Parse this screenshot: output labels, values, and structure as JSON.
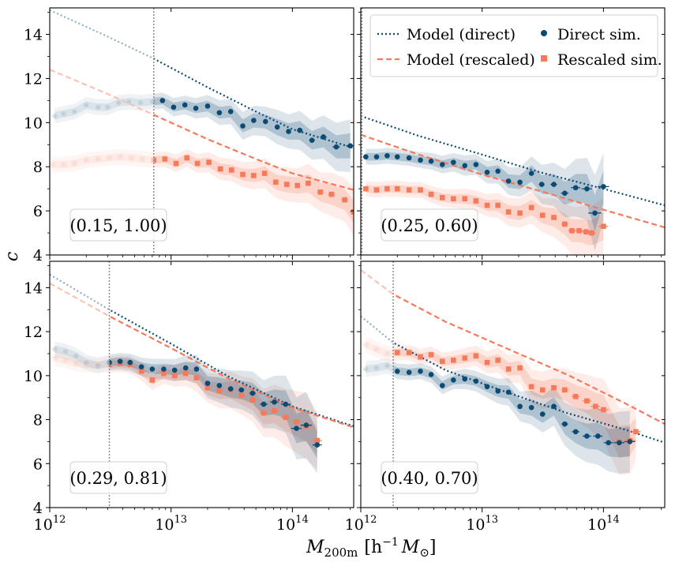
{
  "colors": {
    "direct": "#0b4a74",
    "rescaled": "#f47a5a",
    "vline": "#8c8c8c"
  },
  "chart_data": {
    "type": "scatter",
    "xlabel_main": "M",
    "xlabel_sub": "200m",
    "xlabel_units_open": "[h",
    "xlabel_units_exp": "−1",
    "xlabel_units_M": "M",
    "xlabel_units_sun": "⊙",
    "xlabel_units_close": "]",
    "ylabel": "c",
    "xscale": "log",
    "xlim": [
      1000000000000.0,
      320000000000000.0
    ],
    "ylim": [
      4,
      15.2
    ],
    "yticks": [
      "4",
      "6",
      "8",
      "10",
      "12",
      "14"
    ],
    "ytick_values": [
      4,
      6,
      8,
      10,
      12,
      14
    ],
    "xtick_base": "10",
    "xtick_exps": [
      "12",
      "13",
      "14"
    ],
    "legend": {
      "model_direct": "Model (direct)",
      "model_rescaled": "Model (rescaled)",
      "sim_direct": "Direct sim.",
      "sim_rescaled": "Rescaled sim."
    },
    "panels": [
      {
        "label": "(0.15, 1.00)",
        "vline": 7200000000000.0,
        "model_direct": {
          "x": [
            1000000000000.0,
            3000000000000.0,
            7200000000000.0,
            20000000000000.0,
            50000000000000.0,
            100000000000000.0,
            320000000000000.0
          ],
          "y": [
            15.1,
            13.9,
            12.9,
            11.6,
            10.5,
            9.7,
            8.85
          ]
        },
        "model_rescaled": {
          "x": [
            1000000000000.0,
            3000000000000.0,
            7200000000000.0,
            20000000000000.0,
            50000000000000.0,
            100000000000000.0,
            320000000000000.0
          ],
          "y": [
            12.4,
            11.3,
            10.35,
            9.25,
            8.35,
            7.7,
            6.95
          ]
        },
        "sim_direct": {
          "x": [
            1100000000000.0,
            1300000000000.0,
            1600000000000.0,
            2000000000000.0,
            2500000000000.0,
            3000000000000.0,
            3700000000000.0,
            4500000000000.0,
            5600000000000.0,
            7000000000000.0,
            8500000000000.0,
            10500000000000.0,
            13000000000000.0,
            16000000000000.0,
            20000000000000.0,
            25000000000000.0,
            31000000000000.0,
            39000000000000.0,
            48000000000000.0,
            60000000000000.0,
            75000000000000.0,
            93000000000000.0,
            115000000000000.0,
            145000000000000.0,
            180000000000000.0,
            230000000000000.0,
            300000000000000.0
          ],
          "y": [
            10.3,
            10.4,
            10.5,
            10.8,
            10.7,
            10.7,
            10.9,
            10.95,
            10.9,
            10.95,
            11.0,
            10.7,
            10.8,
            10.65,
            10.75,
            10.45,
            10.5,
            9.85,
            10.1,
            10.05,
            9.8,
            9.6,
            9.65,
            9.2,
            9.35,
            8.9,
            8.95
          ],
          "err": [
            0.05,
            0.05,
            0.05,
            0.05,
            0.05,
            0.05,
            0.05,
            0.05,
            0.05,
            0.05,
            0.05,
            0.08,
            0.08,
            0.1,
            0.12,
            0.15,
            0.15,
            0.18,
            0.2,
            0.2,
            0.25,
            0.25,
            0.3,
            0.3,
            0.35,
            0.4,
            0.45
          ]
        },
        "sim_rescaled": {
          "x": [
            1050000000000.0,
            1300000000000.0,
            1600000000000.0,
            2000000000000.0,
            2500000000000.0,
            3100000000000.0,
            3800000000000.0,
            4700000000000.0,
            5800000000000.0,
            7200000000000.0,
            8900000000000.0,
            11000000000000.0,
            13500000000000.0,
            16500000000000.0,
            20500000000000.0,
            25500000000000.0,
            31500000000000.0,
            39000000000000.0,
            48000000000000.0,
            59000000000000.0,
            73000000000000.0,
            90000000000000.0,
            110000000000000.0,
            135000000000000.0,
            170000000000000.0,
            210000000000000.0,
            270000000000000.0,
            320000000000000.0
          ],
          "y": [
            8.1,
            8.1,
            8.15,
            8.3,
            8.35,
            8.4,
            8.45,
            8.4,
            8.35,
            8.3,
            8.35,
            8.15,
            8.4,
            8.15,
            8.2,
            7.9,
            7.85,
            7.65,
            7.6,
            7.7,
            7.3,
            7.2,
            7.15,
            7.25,
            6.85,
            6.75,
            6.5,
            5.95
          ],
          "err": [
            0.05,
            0.05,
            0.05,
            0.05,
            0.05,
            0.05,
            0.05,
            0.05,
            0.05,
            0.05,
            0.05,
            0.07,
            0.07,
            0.08,
            0.1,
            0.12,
            0.12,
            0.15,
            0.18,
            0.2,
            0.22,
            0.25,
            0.25,
            0.3,
            0.3,
            0.35,
            0.35,
            0.4
          ]
        }
      },
      {
        "label": "(0.25, 0.60)",
        "vline": 1020000000000.0,
        "model_direct": {
          "x": [
            1000000000000.0,
            3000000000000.0,
            10000000000000.0,
            30000000000000.0,
            100000000000000.0,
            320000000000000.0
          ],
          "y": [
            10.3,
            9.4,
            8.55,
            7.75,
            7.0,
            6.25
          ]
        },
        "model_rescaled": {
          "x": [
            1000000000000.0,
            3000000000000.0,
            10000000000000.0,
            30000000000000.0,
            100000000000000.0,
            320000000000000.0
          ],
          "y": [
            9.45,
            8.55,
            7.65,
            6.9,
            6.05,
            5.25
          ]
        },
        "sim_direct": {
          "x": [
            1100000000000.0,
            1350000000000.0,
            1650000000000.0,
            2000000000000.0,
            2500000000000.0,
            3100000000000.0,
            3800000000000.0,
            4700000000000.0,
            5800000000000.0,
            7200000000000.0,
            8900000000000.0,
            11000000000000.0,
            13500000000000.0,
            16500000000000.0,
            20500000000000.0,
            25500000000000.0,
            31000000000000.0,
            39000000000000.0,
            48000000000000.0,
            59000000000000.0,
            73000000000000.0,
            85000000000000.0,
            100000000000000.0
          ],
          "y": [
            8.45,
            8.45,
            8.5,
            8.45,
            8.4,
            8.3,
            8.25,
            8.1,
            8.2,
            8.05,
            8.1,
            7.75,
            7.8,
            7.35,
            7.3,
            7.7,
            7.2,
            7.2,
            6.8,
            7.05,
            7.0,
            5.9,
            7.1
          ],
          "err": [
            0.05,
            0.05,
            0.05,
            0.05,
            0.05,
            0.05,
            0.06,
            0.07,
            0.08,
            0.1,
            0.1,
            0.12,
            0.15,
            0.18,
            0.2,
            0.25,
            0.3,
            0.35,
            0.4,
            0.5,
            0.55,
            0.7,
            0.6
          ]
        },
        "sim_rescaled": {
          "x": [
            1100000000000.0,
            1350000000000.0,
            1650000000000.0,
            2000000000000.0,
            2500000000000.0,
            3100000000000.0,
            3800000000000.0,
            4700000000000.0,
            5800000000000.0,
            7200000000000.0,
            8900000000000.0,
            11000000000000.0,
            13500000000000.0,
            16500000000000.0,
            20500000000000.0,
            25500000000000.0,
            31500000000000.0,
            39000000000000.0,
            48000000000000.0,
            55000000000000.0,
            63000000000000.0,
            72000000000000.0,
            80000000000000.0,
            100000000000000.0
          ],
          "y": [
            7.0,
            6.95,
            7.0,
            7.0,
            6.95,
            6.95,
            6.75,
            6.6,
            6.55,
            6.55,
            6.45,
            6.25,
            6.25,
            5.95,
            5.9,
            6.15,
            5.8,
            5.7,
            5.4,
            5.1,
            5.1,
            5.05,
            5.0,
            5.3
          ],
          "err": [
            0.05,
            0.05,
            0.05,
            0.05,
            0.05,
            0.05,
            0.06,
            0.07,
            0.08,
            0.1,
            0.1,
            0.12,
            0.15,
            0.18,
            0.2,
            0.22,
            0.25,
            0.3,
            0.35,
            0.4,
            0.4,
            0.45,
            0.45,
            0.5
          ]
        }
      },
      {
        "label": "(0.29, 0.81)",
        "vline": 3100000000000.0,
        "model_direct": {
          "x": [
            1000000000000.0,
            3100000000000.0,
            10000000000000.0,
            30000000000000.0,
            100000000000000.0,
            320000000000000.0
          ],
          "y": [
            14.6,
            13.0,
            11.45,
            9.95,
            8.6,
            7.7
          ]
        },
        "model_rescaled": {
          "x": [
            1000000000000.0,
            3100000000000.0,
            10000000000000.0,
            30000000000000.0,
            100000000000000.0,
            320000000000000.0
          ],
          "y": [
            14.2,
            12.7,
            11.25,
            9.85,
            8.55,
            7.65
          ]
        },
        "sim_direct": {
          "x": [
            1100000000000.0,
            1350000000000.0,
            1650000000000.0,
            2000000000000.0,
            2500000000000.0,
            3100000000000.0,
            3800000000000.0,
            4600000000000.0,
            5700000000000.0,
            7000000000000.0,
            8700000000000.0,
            10700000000000.0,
            13200000000000.0,
            16200000000000.0,
            20000000000000.0,
            25000000000000.0,
            31000000000000.0,
            38000000000000.0,
            47000000000000.0,
            58000000000000.0,
            71000000000000.0,
            88000000000000.0,
            108000000000000.0,
            130000000000000.0,
            160000000000000.0
          ],
          "y": [
            11.2,
            11.1,
            10.9,
            10.6,
            10.45,
            10.6,
            10.65,
            10.6,
            10.4,
            10.3,
            10.3,
            10.25,
            10.35,
            10.3,
            9.65,
            9.55,
            9.4,
            9.35,
            9.2,
            8.7,
            8.8,
            8.7,
            7.6,
            7.75,
            6.85
          ],
          "err": [
            0.05,
            0.05,
            0.05,
            0.05,
            0.05,
            0.05,
            0.06,
            0.07,
            0.08,
            0.1,
            0.1,
            0.12,
            0.15,
            0.18,
            0.2,
            0.25,
            0.28,
            0.3,
            0.35,
            0.4,
            0.45,
            0.5,
            0.55,
            0.6,
            0.5
          ]
        },
        "sim_rescaled": {
          "x": [
            1100000000000.0,
            1350000000000.0,
            1650000000000.0,
            2000000000000.0,
            2500000000000.0,
            3100000000000.0,
            3800000000000.0,
            4600000000000.0,
            5700000000000.0,
            7000000000000.0,
            8700000000000.0,
            10700000000000.0,
            13200000000000.0,
            16200000000000.0,
            20000000000000.0,
            25000000000000.0,
            31000000000000.0,
            38000000000000.0,
            47000000000000.0,
            58000000000000.0,
            71000000000000.0,
            88000000000000.0,
            108000000000000.0,
            130000000000000.0,
            160000000000000.0
          ],
          "y": [
            10.8,
            10.7,
            10.55,
            10.5,
            10.5,
            10.5,
            10.55,
            10.5,
            10.2,
            9.8,
            10.1,
            10.0,
            10.1,
            9.9,
            9.45,
            9.3,
            9.35,
            9.1,
            8.9,
            8.3,
            8.4,
            8.1,
            7.9,
            7.7,
            7.05
          ],
          "err": [
            0.05,
            0.05,
            0.05,
            0.05,
            0.05,
            0.05,
            0.06,
            0.07,
            0.08,
            0.1,
            0.1,
            0.12,
            0.15,
            0.18,
            0.2,
            0.25,
            0.28,
            0.3,
            0.35,
            0.4,
            0.45,
            0.5,
            0.55,
            0.6,
            0.5
          ]
        }
      },
      {
        "label": "(0.40, 0.70)",
        "vline": 1850000000000.0,
        "model_direct": {
          "x": [
            1000000000000.0,
            1850000000000.0,
            5000000000000.0,
            15000000000000.0,
            50000000000000.0,
            150000000000000.0,
            320000000000000.0
          ],
          "y": [
            12.7,
            11.5,
            10.25,
            9.3,
            8.3,
            7.55,
            6.95
          ]
        },
        "model_rescaled": {
          "x": [
            1000000000000.0,
            1850000000000.0,
            5000000000000.0,
            15000000000000.0,
            50000000000000.0,
            150000000000000.0,
            320000000000000.0
          ],
          "y": [
            14.8,
            13.7,
            12.45,
            11.3,
            10.05,
            8.75,
            7.8
          ]
        },
        "sim_direct": {
          "x": [
            1100000000000.0,
            1350000000000.0,
            1650000000000.0,
            2000000000000.0,
            2500000000000.0,
            3100000000000.0,
            3800000000000.0,
            4700000000000.0,
            5800000000000.0,
            7200000000000.0,
            8900000000000.0,
            11000000000000.0,
            13500000000000.0,
            16500000000000.0,
            20500000000000.0,
            25500000000000.0,
            31500000000000.0,
            39000000000000.0,
            48000000000000.0,
            59000000000000.0,
            73000000000000.0,
            90000000000000.0,
            110000000000000.0,
            135000000000000.0,
            165000000000000.0
          ],
          "y": [
            10.3,
            10.35,
            10.45,
            10.2,
            10.15,
            10.2,
            10.05,
            9.55,
            9.8,
            9.85,
            9.75,
            9.5,
            9.3,
            9.25,
            8.6,
            8.55,
            8.25,
            8.6,
            7.8,
            7.45,
            7.25,
            7.25,
            6.95,
            6.95,
            7.0
          ],
          "err": [
            0.05,
            0.05,
            0.05,
            0.05,
            0.05,
            0.05,
            0.06,
            0.07,
            0.08,
            0.1,
            0.1,
            0.12,
            0.15,
            0.18,
            0.2,
            0.25,
            0.28,
            0.3,
            0.35,
            0.4,
            0.45,
            0.5,
            0.5,
            0.55,
            0.55
          ]
        },
        "sim_rescaled": {
          "x": [
            1100000000000.0,
            1350000000000.0,
            1650000000000.0,
            2000000000000.0,
            2500000000000.0,
            3100000000000.0,
            3800000000000.0,
            4700000000000.0,
            5800000000000.0,
            7200000000000.0,
            8900000000000.0,
            11000000000000.0,
            13500000000000.0,
            16500000000000.0,
            20500000000000.0,
            25500000000000.0,
            31500000000000.0,
            39000000000000.0,
            48000000000000.0,
            59000000000000.0,
            73000000000000.0,
            86000000000000.0,
            100000000000000.0,
            135000000000000.0,
            165000000000000.0,
            185000000000000.0
          ],
          "y": [
            11.4,
            11.2,
            11.0,
            11.05,
            11.05,
            10.85,
            10.95,
            10.65,
            10.7,
            10.8,
            10.9,
            10.6,
            10.7,
            10.3,
            10.35,
            9.5,
            9.35,
            9.45,
            9.35,
            9.05,
            8.85,
            8.6,
            8.45,
            7.0,
            7.05,
            7.45
          ],
          "err": [
            0.05,
            0.05,
            0.05,
            0.05,
            0.05,
            0.05,
            0.06,
            0.07,
            0.08,
            0.1,
            0.1,
            0.12,
            0.15,
            0.18,
            0.2,
            0.25,
            0.28,
            0.3,
            0.35,
            0.4,
            0.45,
            0.5,
            0.55,
            0.6,
            0.6,
            0.5
          ]
        }
      }
    ]
  }
}
